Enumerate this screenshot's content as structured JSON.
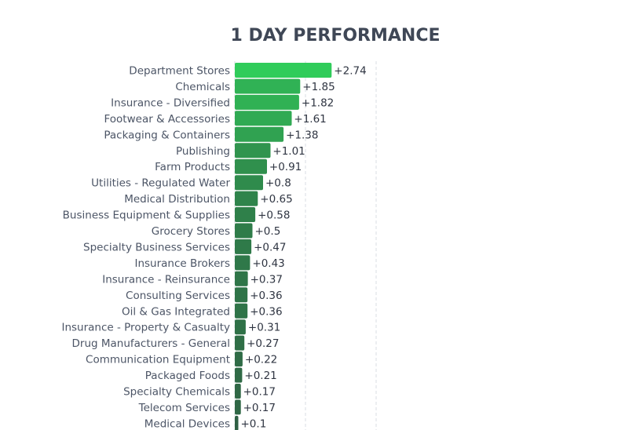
{
  "chart_data": {
    "type": "bar",
    "orientation": "horizontal",
    "title": "1 DAY PERFORMANCE",
    "xlabel": "",
    "ylabel": "",
    "xlim": [
      0,
      5.4
    ],
    "grid": true,
    "value_prefix": "+",
    "categories": [
      "Department Stores",
      "Chemicals",
      "Insurance - Diversified",
      "Footwear & Accessories",
      "Packaging & Containers",
      "Publishing",
      "Farm Products",
      "Utilities - Regulated Water",
      "Medical Distribution",
      "Business Equipment & Supplies",
      "Grocery Stores",
      "Specialty Business Services",
      "Insurance Brokers",
      "Insurance - Reinsurance",
      "Consulting Services",
      "Oil & Gas Integrated",
      "Insurance - Property & Casualty",
      "Drug Manufacturers - General",
      "Communication Equipment",
      "Packaged Foods",
      "Specialty Chemicals",
      "Telecom Services",
      "Medical Devices"
    ],
    "values": [
      2.74,
      1.85,
      1.82,
      1.61,
      1.38,
      1.01,
      0.91,
      0.8,
      0.65,
      0.58,
      0.5,
      0.47,
      0.43,
      0.37,
      0.36,
      0.36,
      0.31,
      0.27,
      0.22,
      0.21,
      0.17,
      0.17,
      0.1
    ],
    "value_labels": [
      "+2.74",
      "+1.85",
      "+1.82",
      "+1.61",
      "+1.38",
      "+1.01",
      "+0.91",
      "+0.8",
      "+0.65",
      "+0.58",
      "+0.5",
      "+0.47",
      "+0.43",
      "+0.37",
      "+0.36",
      "+0.36",
      "+0.31",
      "+0.27",
      "+0.22",
      "+0.21",
      "+0.17",
      "+0.17",
      "+0.1"
    ],
    "colors": {
      "bar_high": "#30cc5a",
      "bar_low": "#2f4f40",
      "grid": "#d9dde3"
    }
  }
}
